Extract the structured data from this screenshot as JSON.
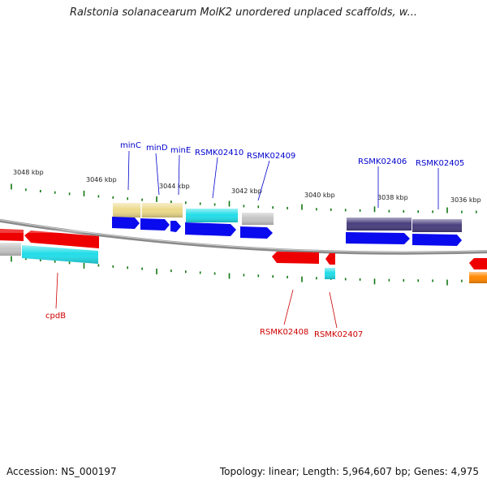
{
  "title": "Ralstonia solanacearum MolK2 unordered unplaced scaffolds, w...",
  "footer": {
    "accession": "Accession: NS_000197",
    "topology": "Topology: linear; Length: 5,964,607 bp; Genes: 4,975"
  },
  "scale_labels": [
    "3048 kbp",
    "3046 kbp",
    "3044 kbp",
    "3042 kbp",
    "3040 kbp",
    "3038 kbp",
    "3036 kbp"
  ],
  "forward_gene_labels": [
    "minC",
    "minD",
    "minE",
    "RSMK02410",
    "RSMK02409",
    "RSMK02406",
    "RSMK02405"
  ],
  "reverse_gene_labels": [
    "cpdB",
    "RSMK02408",
    "RSMK02407"
  ],
  "colors": {
    "forward_label": "#0000cc",
    "reverse_label": "#cc0000",
    "tick": "#117711",
    "backbone": "#8a8a8a",
    "cds_blue": "#0a0aee",
    "cds_red": "#ee0000",
    "gene_cyan": "#22dde8",
    "gene_khaki": "#ecd98a",
    "gene_gray": "#c4c4c4",
    "gene_navy": "#4a3f7e",
    "gene_orange": "#ff8800"
  }
}
